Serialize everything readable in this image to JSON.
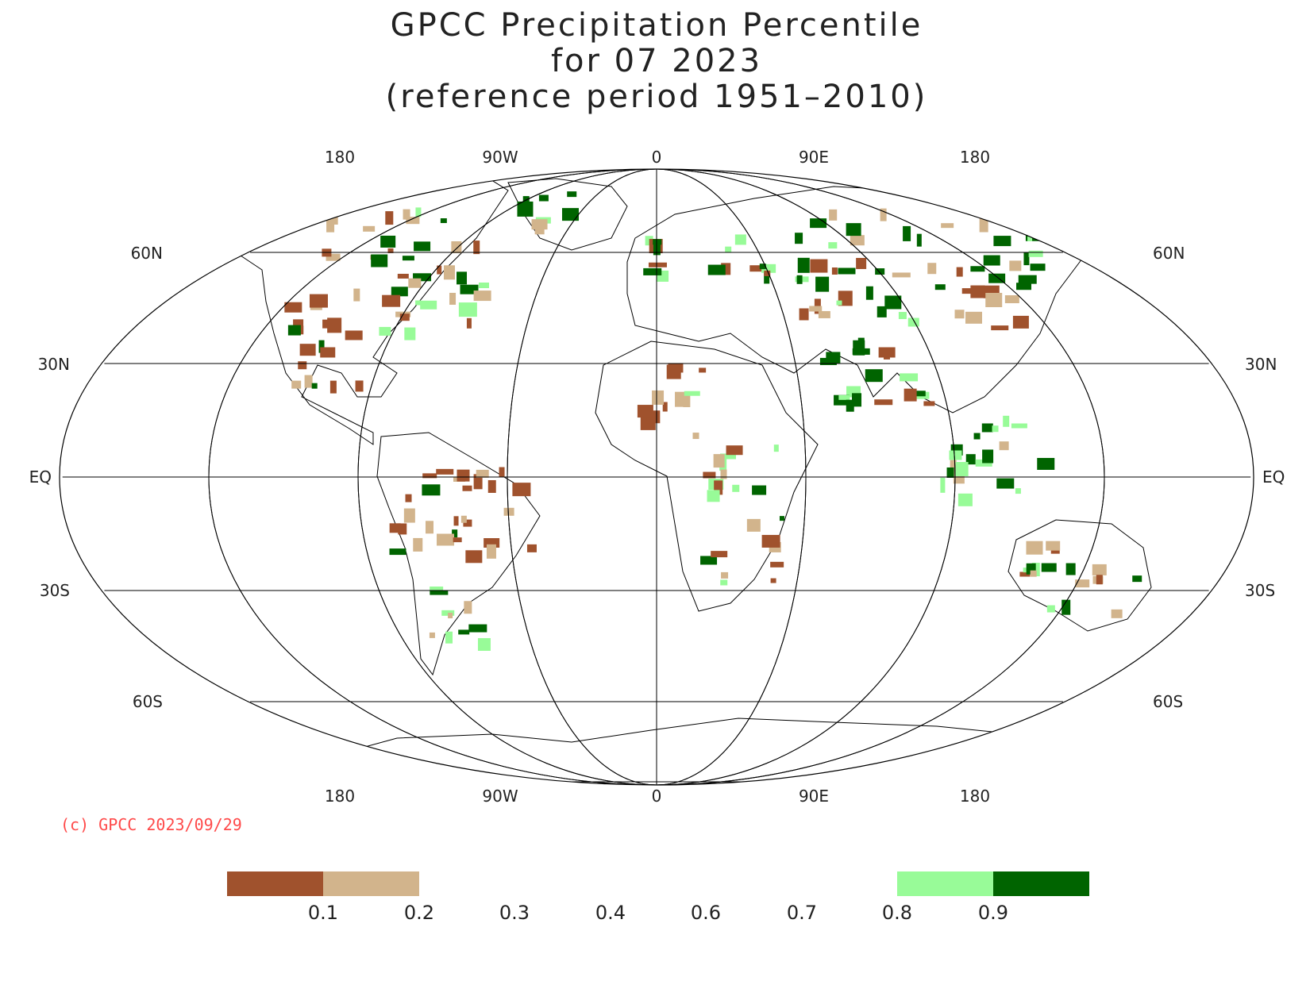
{
  "title": {
    "line1": "GPCC Precipitation Percentile",
    "line2": "for 07 2023",
    "line3": "(reference period 1951–2010)"
  },
  "projection": "Robinson (pseudo-cylindrical)",
  "longitude_labels_top": [
    "180",
    "90W",
    "0",
    "90E",
    "180"
  ],
  "longitude_labels_bottom": [
    "180",
    "90W",
    "0",
    "90E",
    "180"
  ],
  "latitude_labels_left": [
    "60N",
    "30N",
    "EQ",
    "30S",
    "60S"
  ],
  "latitude_labels_right": [
    "60N",
    "30N",
    "EQ",
    "30S",
    "60S"
  ],
  "copyright": "(c) GPCC 2023/09/29",
  "colors": {
    "very_dry": "#a0522d",
    "dry": "#d2b48c",
    "wet": "#98fb98",
    "very_wet": "#006400",
    "grid": "#000000",
    "coast": "#000000"
  },
  "colorbar": {
    "ticks": [
      "0.1",
      "0.2",
      "0.3",
      "0.4",
      "0.6",
      "0.7",
      "0.8",
      "0.9"
    ],
    "segments": [
      {
        "color": "#a0522d",
        "meaning": "below 0.1"
      },
      {
        "color": "#d2b48c",
        "meaning": "0.1 – 0.2"
      },
      {
        "color": "#ffffff",
        "meaning": "0.2 – 0.8"
      },
      {
        "color": "#98fb98",
        "meaning": "0.8 – 0.9"
      },
      {
        "color": "#006400",
        "meaning": "above 0.9"
      }
    ]
  }
}
